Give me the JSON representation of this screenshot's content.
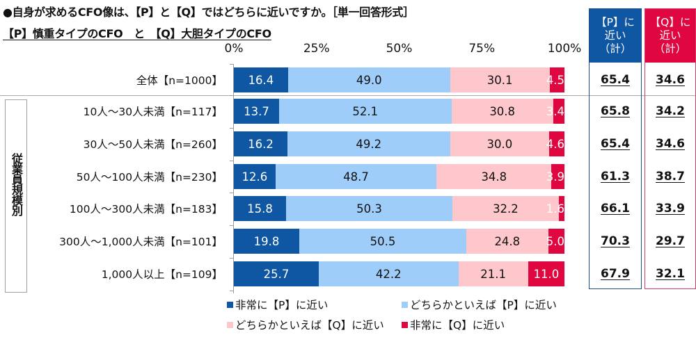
{
  "header": {
    "title": "●自身が求めるCFO像は、【P】と【Q】ではどちらに近いですか。［単一回答形式］",
    "subtitle": "【P】慎重タイプのCFO　と　【Q】大胆タイプのCFO"
  },
  "group_label": "従業員規模別",
  "colors": {
    "very_p": "#0f56a3",
    "somewhat_p": "#9ecdfa",
    "somewhat_q": "#fdc7cb",
    "very_q": "#e0063f",
    "p_column": "#0f56a3",
    "q_column": "#e0063f"
  },
  "columns": {
    "p_header": [
      "【P】に",
      "近い",
      "（計）"
    ],
    "q_header": [
      "【Q】に",
      "近い",
      "（計）"
    ]
  },
  "chart_data": {
    "type": "bar",
    "orientation": "horizontal",
    "stacked": true,
    "title": "自身が求めるCFO像は、【P】と【Q】ではどちらに近いですか。［単一回答形式］",
    "subtitle": "【P】慎重タイプのCFO　と　【Q】大胆タイプのCFO",
    "xlabel": "",
    "ylabel": "",
    "xlim": [
      0,
      100
    ],
    "x_ticks": [
      "0%",
      "25%",
      "50%",
      "75%",
      "100%"
    ],
    "grid": false,
    "legend_position": "bottom",
    "categories": [
      "全体【n=1000】",
      "10人～30人未満【n=117】",
      "30人～50人未満【n=260】",
      "50人～100人未満【n=230】",
      "100人～300人未満【n=183】",
      "300人～1,000人未満【n=101】",
      "1,000人以上【n=109】"
    ],
    "series": [
      {
        "name": "非常に【P】に近い",
        "color": "#0f56a3",
        "values": [
          16.4,
          13.7,
          16.2,
          12.6,
          15.8,
          19.8,
          25.7
        ]
      },
      {
        "name": "どちらかといえば【P】に近い",
        "color": "#9ecdfa",
        "values": [
          49.0,
          52.1,
          49.2,
          48.7,
          50.3,
          50.5,
          42.2
        ]
      },
      {
        "name": "どちらかといえば【Q】に近い",
        "color": "#fdc7cb",
        "values": [
          30.1,
          30.8,
          30.0,
          34.8,
          32.2,
          24.8,
          21.1
        ]
      },
      {
        "name": "非常に【Q】に近い",
        "color": "#e0063f",
        "values": [
          4.5,
          3.4,
          4.6,
          3.9,
          1.6,
          5.0,
          11.0
        ]
      }
    ],
    "totals": {
      "p_near": [
        65.4,
        65.8,
        65.4,
        61.3,
        66.1,
        70.3,
        67.9
      ],
      "q_near": [
        34.6,
        34.2,
        34.6,
        38.7,
        33.9,
        29.7,
        32.1
      ]
    }
  }
}
